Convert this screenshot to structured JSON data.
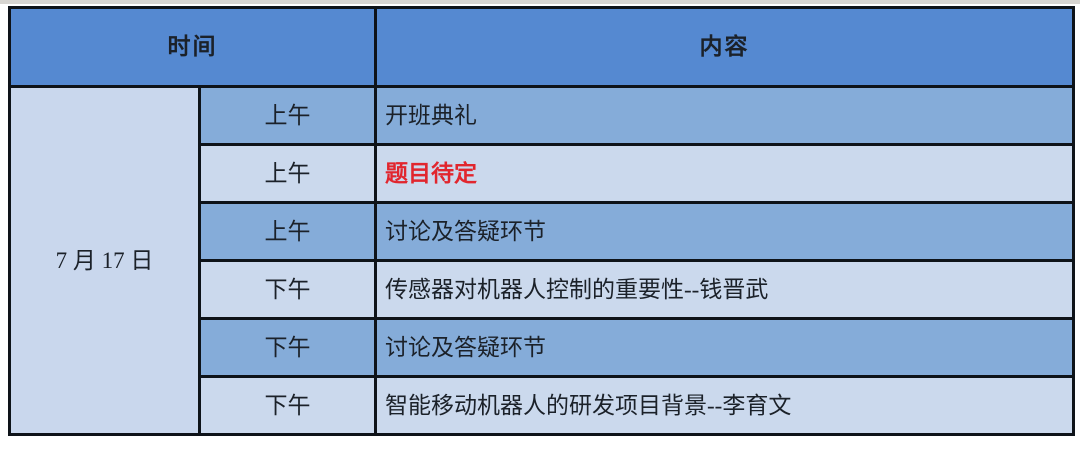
{
  "table": {
    "header": {
      "time_label": "时间",
      "content_label": "内容"
    },
    "date": "7 月 17 日",
    "rows": [
      {
        "period": "上午",
        "content": "开班典礼",
        "shade": "dark",
        "highlight": false
      },
      {
        "period": "上午",
        "content": "题目待定",
        "shade": "light",
        "highlight": true
      },
      {
        "period": "上午",
        "content": "讨论及答疑环节",
        "shade": "dark",
        "highlight": false
      },
      {
        "period": "下午",
        "content": "传感器对机器人控制的重要性--钱晋武",
        "shade": "light",
        "highlight": false
      },
      {
        "period": "下午",
        "content": "讨论及答疑环节",
        "shade": "dark",
        "highlight": false
      },
      {
        "period": "下午",
        "content": "智能移动机器人的研发项目背景--李育文",
        "shade": "light",
        "highlight": false
      }
    ],
    "colors": {
      "header_bg": "#5589d1",
      "row_dark_bg": "#85acd9",
      "row_light_bg": "#cbd9ed",
      "date_cell_bg": "#c9d7ed",
      "border": "#0e1319",
      "text": "#1b2129",
      "highlight_text": "#e1262e"
    }
  }
}
